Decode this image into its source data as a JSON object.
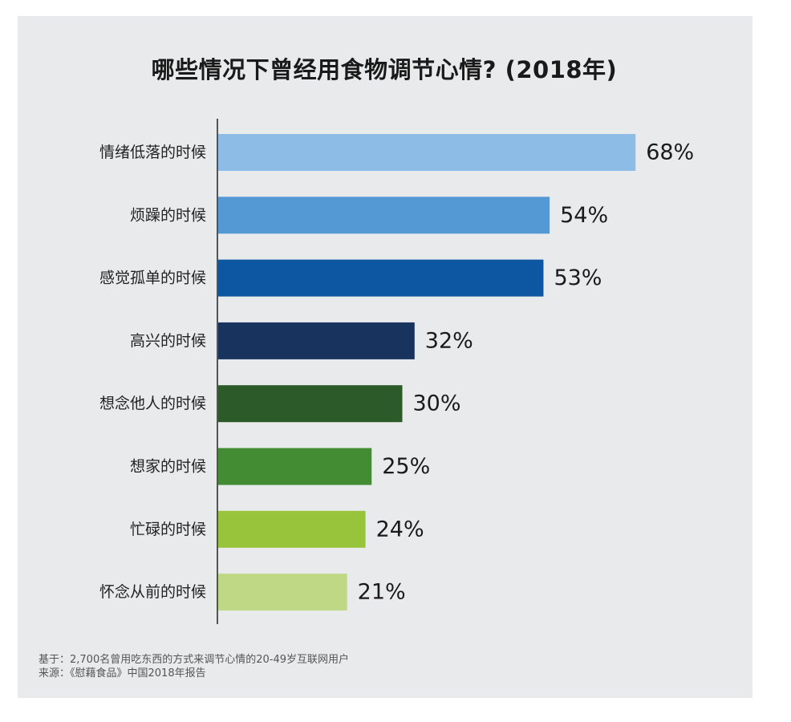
{
  "chart_data": {
    "type": "bar",
    "orientation": "horizontal",
    "title": "哪些情况下曾经用食物调节心情? (2018年)",
    "categories": [
      "情绪低落的时候",
      "烦躁的时候",
      "感觉孤单的时候",
      "高兴的时候",
      "想念他人的时候",
      "想家的时候",
      "忙碌的时候",
      "怀念从前的时候"
    ],
    "values": [
      68,
      54,
      53,
      32,
      30,
      25,
      24,
      21
    ],
    "value_labels": [
      "68%",
      "54%",
      "53%",
      "32%",
      "30%",
      "25%",
      "24%",
      "21%"
    ],
    "unit": "%",
    "colors": [
      "#8dbde6",
      "#5499d3",
      "#0c56a2",
      "#18335e",
      "#2c5a28",
      "#448c34",
      "#98c43c",
      "#bfd886"
    ],
    "xlim": [
      0,
      100
    ],
    "grid": false
  },
  "footnotes": {
    "basis": "基于：2,700名曾用吃东西的方式来调节心情的20-49岁互联网用户",
    "source": "来源：《慰藉食品》中国2018年报告"
  }
}
